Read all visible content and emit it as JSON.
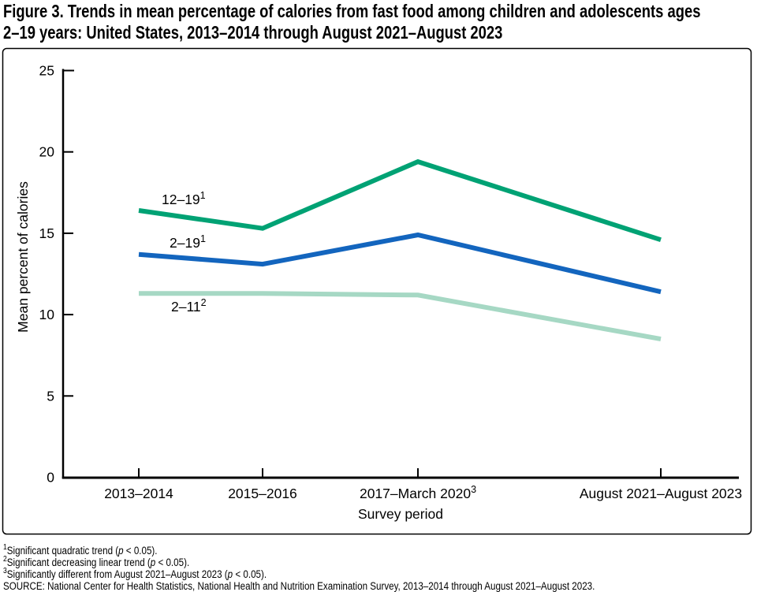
{
  "title": {
    "line1": "Figure 3. Trends in mean percentage of calories from fast food among children and adolescents ages",
    "line2": "2–19 years: United States, 2013–2014 through August 2021–August 2023"
  },
  "chart_data": {
    "type": "line",
    "title": "Trends in mean percentage of calories from fast food among children and adolescents ages 2–19 years",
    "categories": [
      "2013–2014",
      "2015–2016",
      "2017–March 2020",
      "August 2021–August 2023"
    ],
    "x_tick_sups": [
      "",
      "",
      "3",
      ""
    ],
    "series": [
      {
        "name": "12–19",
        "name_sup": "1",
        "color": "#00a274",
        "values": [
          16.4,
          15.3,
          19.4,
          14.6
        ]
      },
      {
        "name": "2–19",
        "name_sup": "1",
        "color": "#1365be",
        "values": [
          13.7,
          13.1,
          14.9,
          11.4
        ]
      },
      {
        "name": "2–11",
        "name_sup": "2",
        "color": "#a6d8c4",
        "values": [
          11.3,
          11.3,
          11.2,
          8.5
        ]
      }
    ],
    "xlabel": "Survey period",
    "ylabel": "Mean percent of calories",
    "ylim": [
      0,
      25
    ],
    "yticks": [
      0,
      5,
      10,
      15,
      20,
      25
    ],
    "grid": "off",
    "legend_position": "inline-labels"
  },
  "footnotes": [
    {
      "sup": "1",
      "pre": "Significant quadratic trend (",
      "p": "p",
      "post": " < 0.05)."
    },
    {
      "sup": "2",
      "pre": "Significant decreasing linear trend (",
      "p": "p",
      "post": " < 0.05)."
    },
    {
      "sup": "3",
      "pre": "Significantly different from August 2021–August 2023 (",
      "p": "p",
      "post": " < 0.05)."
    }
  ],
  "source": "SOURCE: National Center for Health Statistics, National Health and Nutrition Examination Survey, 2013–2014 through August 2021–August 2023."
}
